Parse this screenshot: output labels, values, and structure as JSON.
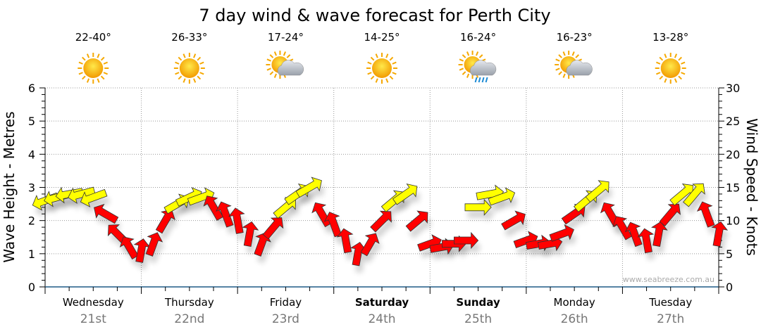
{
  "chart_data": {
    "type": "scatter",
    "title": "7 day wind & wave forecast for Perth City",
    "ylabel_left": "Wave Height - Metres",
    "ylabel_right": "Wind Speed - Knots",
    "ylim_left": [
      0,
      6
    ],
    "ylim_right": [
      0,
      30
    ],
    "yticks_left": [
      "0",
      "1",
      "2",
      "3",
      "4",
      "5",
      "6"
    ],
    "yticks_right": [
      "0",
      "5",
      "10",
      "15",
      "20",
      "25",
      "30"
    ],
    "grid": true,
    "watermark": "www.seabreeze.com.au",
    "days": [
      {
        "name": "Wednesday",
        "date": "21st",
        "bold": false,
        "temp": "22-40°",
        "weather": "sunny"
      },
      {
        "name": "Thursday",
        "date": "22nd",
        "bold": false,
        "temp": "26-33°",
        "weather": "sunny"
      },
      {
        "name": "Friday",
        "date": "23rd",
        "bold": false,
        "temp": "17-24°",
        "weather": "partly-cloudy"
      },
      {
        "name": "Saturday",
        "date": "24th",
        "bold": true,
        "temp": "14-25°",
        "weather": "sunny"
      },
      {
        "name": "Sunday",
        "date": "25th",
        "bold": true,
        "temp": "16-24°",
        "weather": "rain"
      },
      {
        "name": "Monday",
        "date": "26th",
        "bold": false,
        "temp": "16-23°",
        "weather": "partly-cloudy"
      },
      {
        "name": "Tuesday",
        "date": "27th",
        "bold": false,
        "temp": "13-28°",
        "weather": "sunny"
      }
    ],
    "interval_hours": 3,
    "wind_speed_knots": [
      13,
      13.5,
      14,
      14,
      13.5,
      11,
      8,
      6,
      5.5,
      6.5,
      10,
      12.5,
      13.5,
      13.5,
      12,
      11,
      10,
      8,
      6.5,
      9,
      12,
      14,
      15,
      11,
      9.5,
      7,
      5,
      6.5,
      10,
      13,
      14,
      10,
      6.5,
      6,
      6.5,
      7,
      12,
      14,
      13.5,
      10,
      7,
      6.5,
      6.5,
      8,
      11,
      13,
      14.5,
      11,
      9,
      8,
      7,
      8,
      11,
      14,
      14,
      11,
      8
    ],
    "wind_arrow_direction_deg": [
      200,
      195,
      190,
      195,
      200,
      150,
      135,
      120,
      80,
      70,
      60,
      30,
      25,
      20,
      120,
      110,
      100,
      80,
      70,
      50,
      40,
      35,
      30,
      120,
      110,
      100,
      80,
      60,
      45,
      40,
      35,
      40,
      20,
      10,
      0,
      0,
      0,
      10,
      20,
      30,
      20,
      10,
      10,
      20,
      35,
      40,
      40,
      120,
      120,
      110,
      100,
      80,
      50,
      40,
      50,
      110,
      80
    ],
    "wind_category": [
      "yellow",
      "yellow",
      "yellow",
      "yellow",
      "yellow",
      "red",
      "red",
      "red",
      "red",
      "red",
      "red",
      "yellow",
      "yellow",
      "yellow",
      "red",
      "red",
      "red",
      "red",
      "red",
      "red",
      "yellow",
      "yellow",
      "yellow",
      "red",
      "red",
      "red",
      "red",
      "red",
      "red",
      "yellow",
      "yellow",
      "red",
      "red",
      "red",
      "red",
      "red",
      "yellow",
      "yellow",
      "yellow",
      "red",
      "red",
      "red",
      "red",
      "red",
      "red",
      "yellow",
      "yellow",
      "red",
      "red",
      "red",
      "red",
      "red",
      "red",
      "yellow",
      "yellow",
      "red",
      "red"
    ],
    "colors": {
      "yellow": "#ffff00",
      "red": "#ff0000",
      "axis": "#1f5a85",
      "grid": "#999999",
      "date": "#777777"
    }
  }
}
